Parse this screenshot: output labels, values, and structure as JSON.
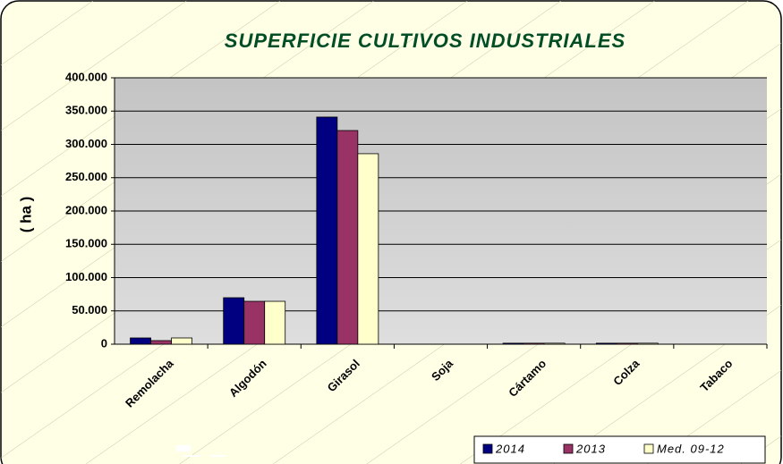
{
  "chart_data": {
    "type": "bar",
    "title": "SUPERFICIE CULTIVOS INDUSTRIALES",
    "y_label": "( ha )",
    "categories": [
      "Remolacha",
      "Algodón",
      "Girasol",
      "Soja",
      "Cártamo",
      "Colza",
      "Tabaco"
    ],
    "series": [
      {
        "name": "2014",
        "color": "#000080",
        "values": [
          9400,
          69800,
          341000,
          0,
          1500,
          1500,
          0
        ]
      },
      {
        "name": "2013",
        "color": "#993366",
        "values": [
          5400,
          64400,
          320800,
          0,
          1500,
          1500,
          0
        ]
      },
      {
        "name": "Med. 09-12",
        "color": "#ffffcc",
        "values": [
          9400,
          64400,
          286000,
          0,
          1500,
          1500,
          0
        ]
      }
    ],
    "ylim": [
      0,
      400000
    ],
    "yticks": [
      0,
      {
        "value": 50000,
        "label": "50.000"
      },
      {
        "value": 100000,
        "label": "100.000"
      },
      {
        "value": 150000,
        "label": "150.000"
      },
      {
        "value": 200000,
        "label": "200.000"
      },
      {
        "value": 250000,
        "label": "250.000"
      },
      {
        "value": 300000,
        "label": "300.000"
      },
      {
        "value": 350000,
        "label": "350.000"
      },
      {
        "value": 400000,
        "label": "400.000"
      }
    ],
    "grid": true,
    "legend": "bottom-right"
  }
}
